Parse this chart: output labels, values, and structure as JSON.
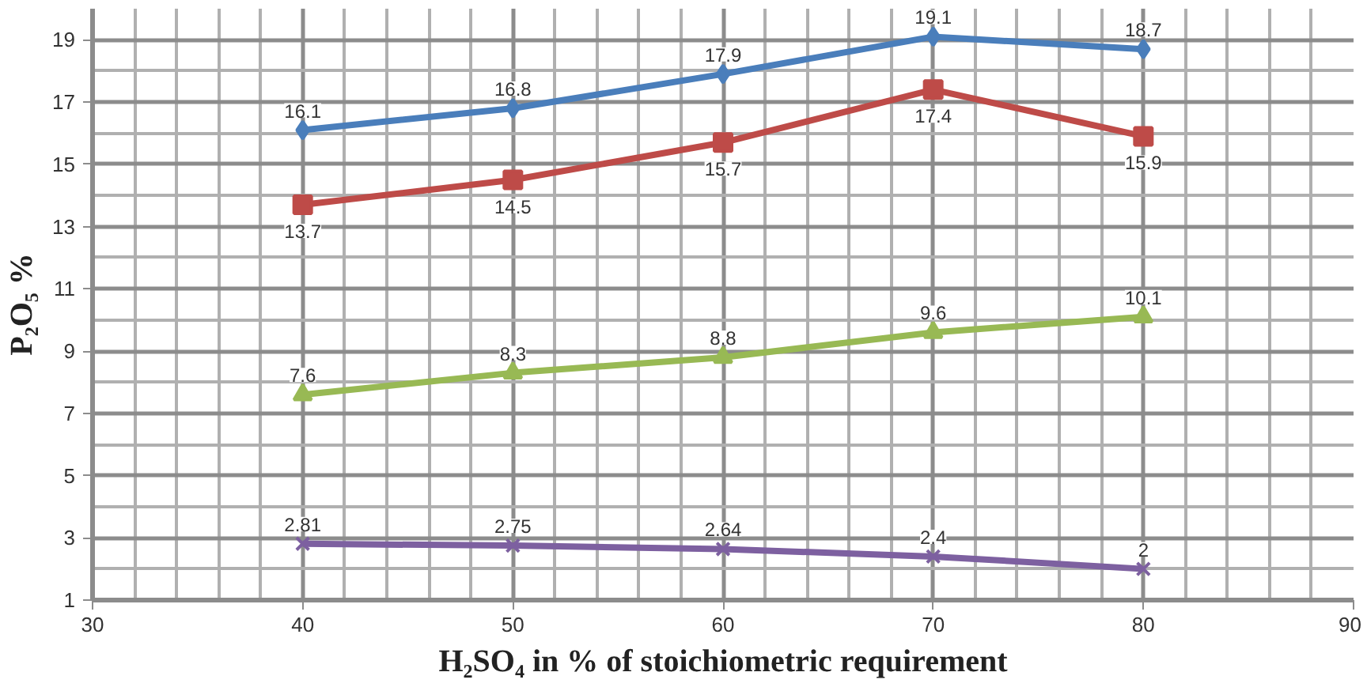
{
  "chart_data": {
    "type": "line",
    "xlabel": "H₂SO₄ in % of stoichiometric requirement",
    "ylabel": "P₂O₅ %",
    "x": [
      40,
      50,
      60,
      70,
      80
    ],
    "series": [
      {
        "color": "#4a7ebb",
        "marker": "diamond",
        "values": [
          16.1,
          16.8,
          17.9,
          19.1,
          18.7
        ]
      },
      {
        "color": "#be4b48",
        "marker": "square",
        "values": [
          13.7,
          14.5,
          15.7,
          17.4,
          15.9
        ]
      },
      {
        "color": "#98b954",
        "marker": "triangle",
        "values": [
          7.6,
          8.3,
          8.8,
          9.6,
          10.1
        ]
      },
      {
        "color": "#7d60a0",
        "marker": "x",
        "values": [
          2.81,
          2.75,
          2.64,
          2.4,
          2
        ]
      }
    ],
    "xlim": [
      30,
      90
    ],
    "xticks": [
      30,
      40,
      50,
      60,
      70,
      80,
      90
    ],
    "ylim": [
      1,
      20
    ],
    "yticks": [
      1,
      3,
      5,
      7,
      9,
      11,
      13,
      15,
      17,
      19
    ],
    "grid": true,
    "data_labels": true,
    "line_style": "solid"
  }
}
